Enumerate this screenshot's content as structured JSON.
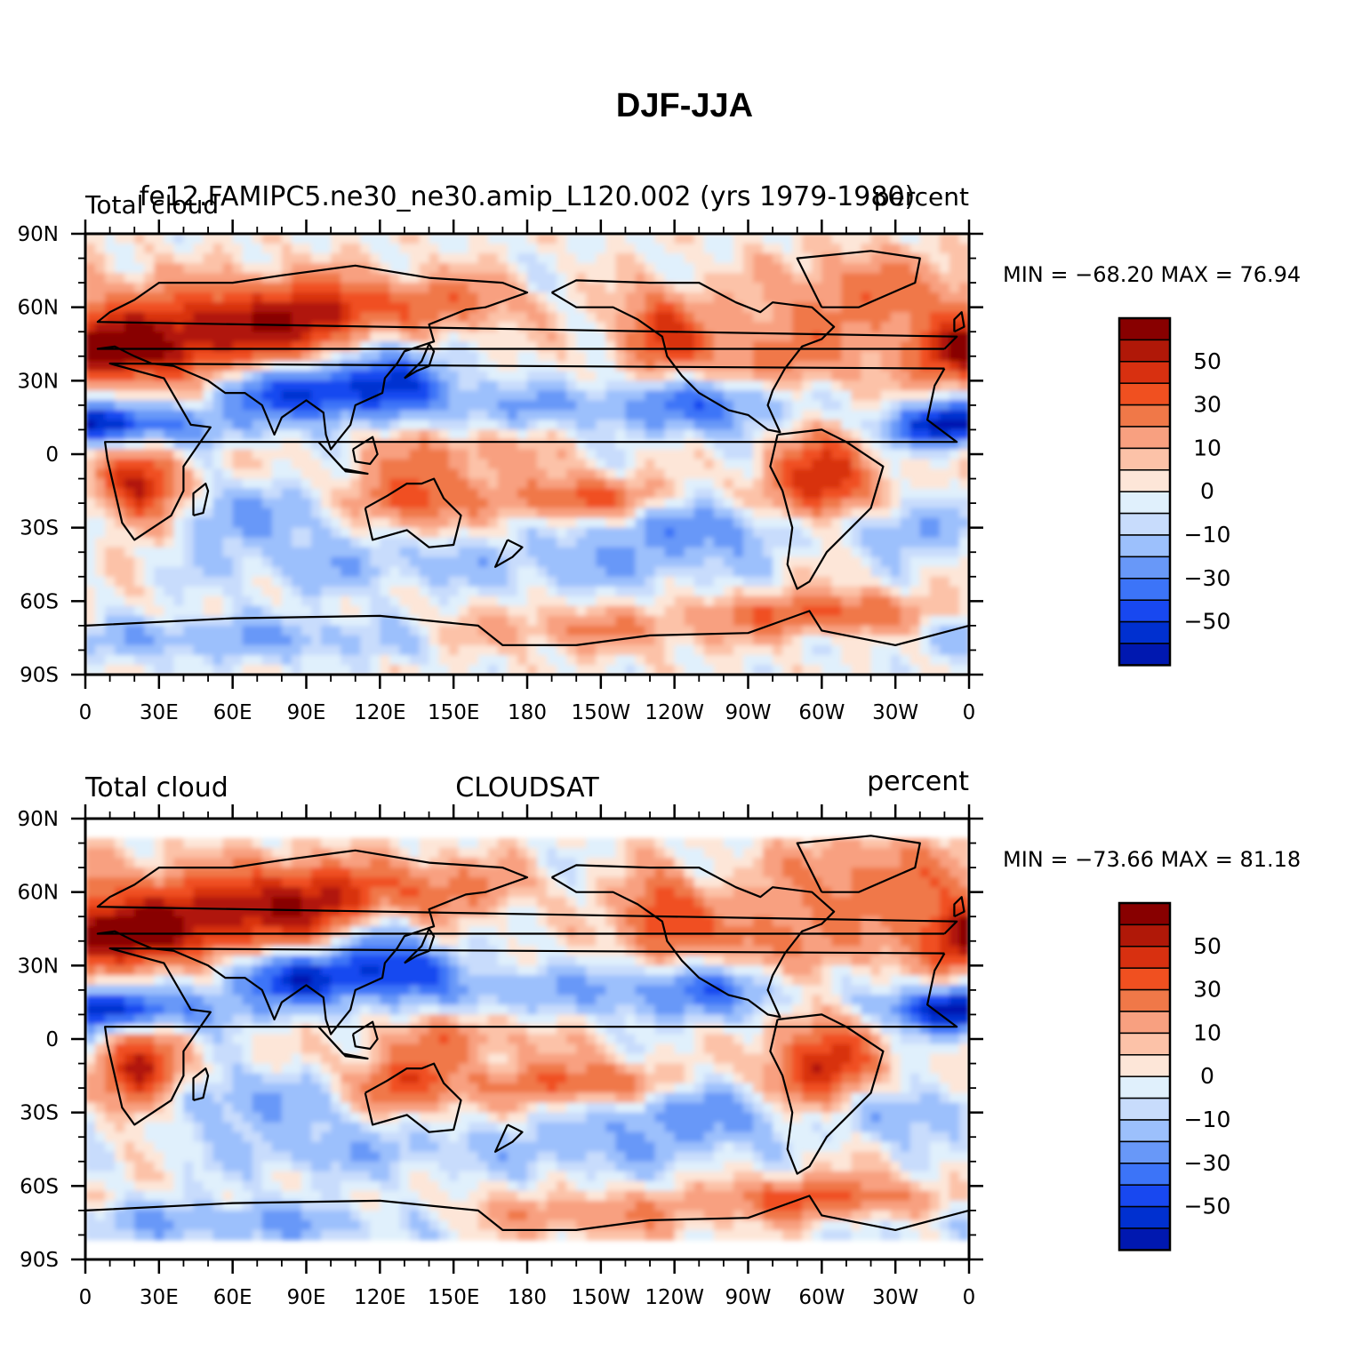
{
  "title": "DJF-JJA",
  "colors": {
    "levels": [
      "#000090",
      "#0018b0",
      "#0030d0",
      "#1848f0",
      "#3c74f8",
      "#6898f8",
      "#9cc0fc",
      "#c8dcfc",
      "#e0f0fc",
      "#fde6d8",
      "#fcc2a8",
      "#f8a080",
      "#f07848",
      "#f05020",
      "#d83010",
      "#b01808",
      "#880000"
    ],
    "coastline": "#000000"
  },
  "chart_data": [
    {
      "type": "heatmap",
      "name": "model",
      "left_title": "Total cloud",
      "center_title": "fe12.FAMIPC5.ne30_ne30.amip_L120.002 (yrs 1979-1980)",
      "right_title": "percent",
      "minmax_text": "MIN = −68.20 MAX =  76.94",
      "min": -68.2,
      "max": 76.94,
      "x_ticks": [
        "0",
        "30E",
        "60E",
        "90E",
        "120E",
        "150E",
        "180",
        "150W",
        "120W",
        "90W",
        "60W",
        "30W",
        "0"
      ],
      "y_ticks": [
        "90N",
        "60N",
        "30N",
        "0",
        "30S",
        "60S",
        "90S"
      ],
      "colorbar_labels": [
        "50",
        "30",
        "10",
        "0",
        "−10",
        "−30",
        "−50"
      ],
      "levels": [
        -70,
        -60,
        -50,
        -40,
        -30,
        -20,
        -10,
        -5,
        0,
        5,
        10,
        20,
        30,
        40,
        50,
        60
      ],
      "lat_range": [
        -90,
        90
      ],
      "lon_range": [
        0,
        360
      ]
    },
    {
      "type": "heatmap",
      "name": "cloudsat",
      "left_title": "Total cloud",
      "center_title": "CLOUDSAT",
      "right_title": "percent",
      "minmax_text": "MIN = −73.66 MAX =  81.18",
      "min": -73.66,
      "max": 81.18,
      "x_ticks": [
        "0",
        "30E",
        "60E",
        "90E",
        "120E",
        "150E",
        "180",
        "150W",
        "120W",
        "90W",
        "60W",
        "30W",
        "0"
      ],
      "y_ticks": [
        "90N",
        "60N",
        "30N",
        "0",
        "30S",
        "60S",
        "90S"
      ],
      "colorbar_labels": [
        "50",
        "30",
        "10",
        "0",
        "−10",
        "−30",
        "−50"
      ],
      "levels": [
        -70,
        -60,
        -50,
        -40,
        -30,
        -20,
        -10,
        -5,
        0,
        5,
        10,
        20,
        30,
        40,
        50,
        60
      ],
      "lat_range": [
        -82,
        82
      ],
      "lon_range": [
        0,
        360
      ]
    }
  ]
}
